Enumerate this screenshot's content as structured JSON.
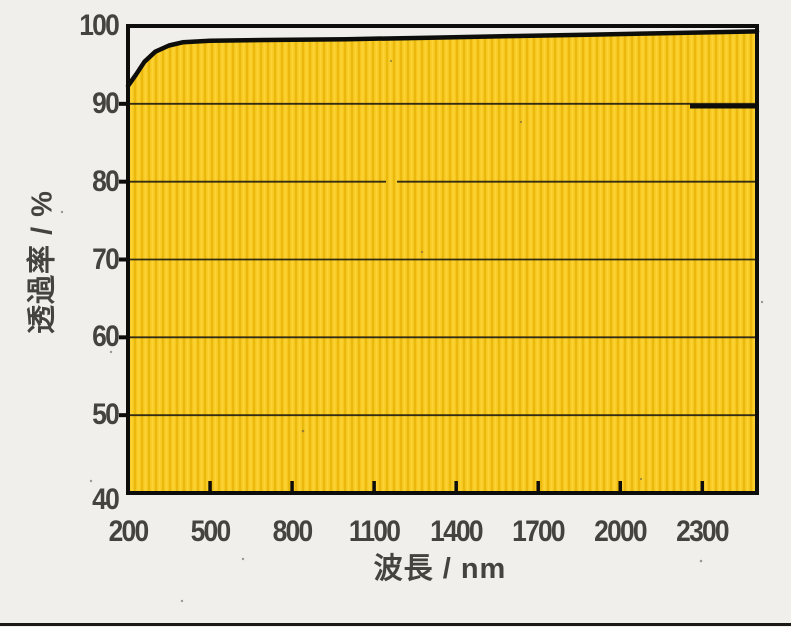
{
  "chart_data": {
    "type": "area",
    "title": "",
    "xlabel": "波長 / nm",
    "ylabel": "透過率 / %",
    "xlim": [
      200,
      2500
    ],
    "ylim": [
      40,
      100
    ],
    "xticks": [
      200,
      500,
      800,
      1100,
      1400,
      1700,
      2000,
      2300
    ],
    "yticks": [
      100,
      90,
      80,
      70,
      60,
      50,
      40
    ],
    "grid": "horizontal",
    "legend": "none",
    "series": [
      {
        "name": "transmittance",
        "x": [
          200,
          230,
          260,
          300,
          350,
          400,
          500,
          700,
          1000,
          1300,
          1600,
          1900,
          2200,
          2500
        ],
        "y": [
          92.3,
          93.8,
          95.4,
          96.7,
          97.5,
          97.9,
          98.1,
          98.2,
          98.3,
          98.5,
          98.7,
          98.9,
          99.1,
          99.3
        ]
      }
    ],
    "colors": {
      "fill": "#F7C71F",
      "fill_stripe_dark": "#EAB90E",
      "fill_stripe_light": "#FDD63A",
      "line": "#0d0d0b",
      "grid": "#1a1812",
      "paper": "#f1efeb",
      "label": "#45433f"
    }
  }
}
